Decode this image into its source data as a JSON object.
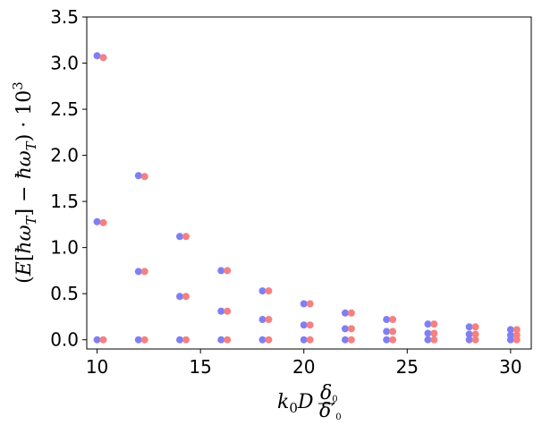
{
  "chart_data": {
    "type": "scatter",
    "title": "",
    "xlabel": "k_0 D^{δ_0/δ'_0}",
    "ylabel": "(E[ħω_T] − ħω_T) · 10^3",
    "xlim": [
      9.5,
      31
    ],
    "ylim": [
      -0.1,
      3.5
    ],
    "x_ticks": [
      "10",
      "15",
      "20",
      "25",
      "30"
    ],
    "y_ticks": [
      "0.0",
      "0.5",
      "1.0",
      "1.5",
      "2.0",
      "2.5",
      "3.0",
      "3.5"
    ],
    "grid": false,
    "legend": "none",
    "series": [
      {
        "color": "#7f7ff5",
        "x": [
          10,
          10,
          10,
          12,
          12,
          12,
          14,
          14,
          14,
          16,
          16,
          16,
          18,
          18,
          18,
          20,
          20,
          20,
          22,
          22,
          22,
          24,
          24,
          24,
          26,
          26,
          26,
          28,
          28,
          28,
          30,
          30,
          30
        ],
        "y": [
          3.08,
          1.28,
          0.0,
          1.78,
          0.74,
          0.0,
          1.12,
          0.47,
          0.0,
          0.75,
          0.31,
          0.0,
          0.53,
          0.22,
          0.0,
          0.39,
          0.16,
          0.0,
          0.29,
          0.12,
          0.0,
          0.22,
          0.09,
          0.0,
          0.17,
          0.07,
          0.0,
          0.14,
          0.06,
          0.0,
          0.11,
          0.05,
          0.0
        ]
      },
      {
        "color": "#f58080",
        "x": [
          10.3,
          10.3,
          10.3,
          12.3,
          12.3,
          12.3,
          14.3,
          14.3,
          14.3,
          16.3,
          16.3,
          16.3,
          18.3,
          18.3,
          18.3,
          20.3,
          20.3,
          20.3,
          22.3,
          22.3,
          22.3,
          24.3,
          24.3,
          24.3,
          26.3,
          26.3,
          26.3,
          28.3,
          28.3,
          28.3,
          30.3,
          30.3,
          30.3
        ],
        "y": [
          3.06,
          1.27,
          0.0,
          1.77,
          0.74,
          0.0,
          1.12,
          0.47,
          0.0,
          0.75,
          0.31,
          0.0,
          0.53,
          0.22,
          0.0,
          0.39,
          0.16,
          0.0,
          0.29,
          0.12,
          0.0,
          0.22,
          0.09,
          0.0,
          0.17,
          0.07,
          0.0,
          0.14,
          0.06,
          0.0,
          0.11,
          0.05,
          0.0
        ]
      }
    ]
  }
}
